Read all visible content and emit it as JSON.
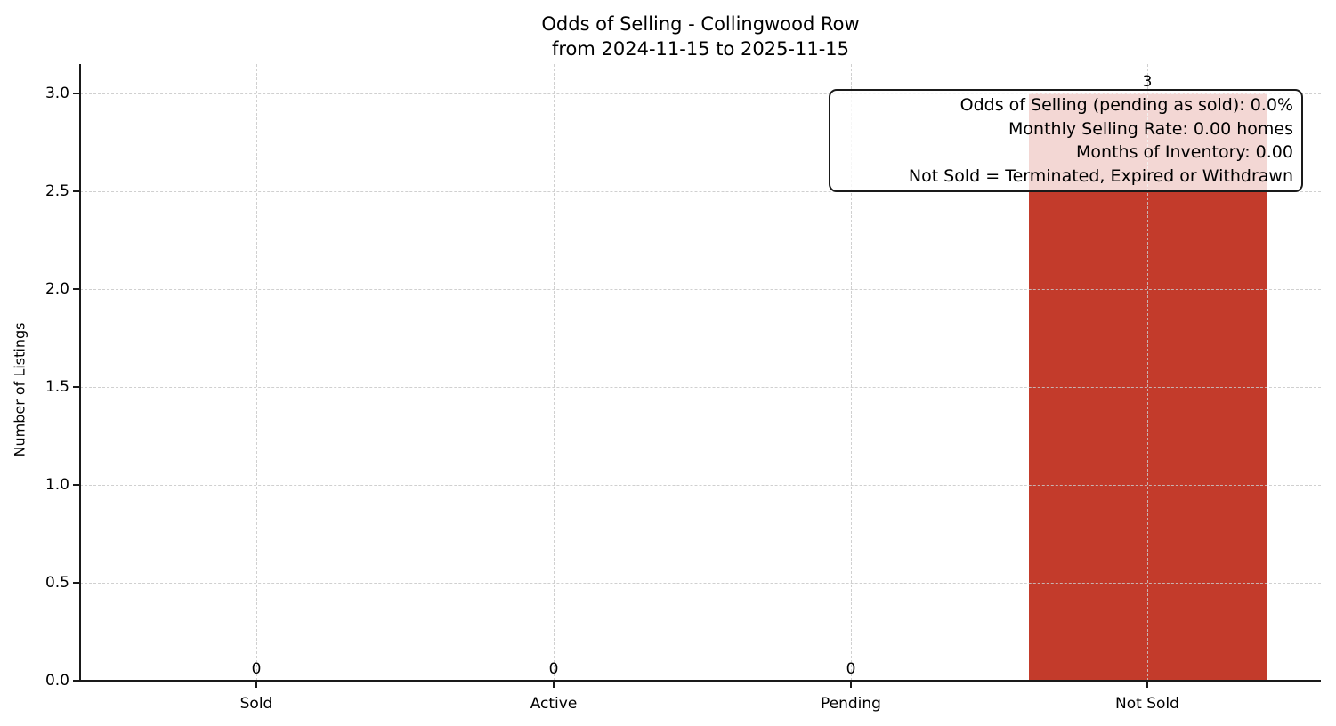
{
  "chart_data": {
    "type": "bar",
    "title": "Odds of Selling - Collingwood Row",
    "subtitle": "from 2024-11-15 to 2025-11-15",
    "categories": [
      "Sold",
      "Active",
      "Pending",
      "Not Sold"
    ],
    "values": [
      0,
      0,
      0,
      3
    ],
    "value_labels": [
      "0",
      "0",
      "0",
      "3"
    ],
    "xlabel": "",
    "ylabel": "Number of Listings",
    "ylim": [
      0,
      3.15
    ],
    "yticks": [
      0,
      0.5,
      1,
      1.5,
      2,
      2.5,
      3
    ],
    "ytick_labels": [
      "0.0",
      "0.5",
      "1.0",
      "1.5",
      "2.0",
      "2.5",
      "3.0"
    ],
    "grid": "dashed, horizontal and vertical, drawn over bars",
    "legend": "none",
    "bar_color": "#c33b2b",
    "axis_color": "#1a1a1a",
    "annotation": {
      "lines": [
        "Odds of Selling (pending as sold): 0.0%",
        "Monthly Selling Rate: 0.00 homes",
        "Months of Inventory: 0.00",
        "Not Sold = Terminated, Expired or Withdrawn"
      ]
    }
  }
}
